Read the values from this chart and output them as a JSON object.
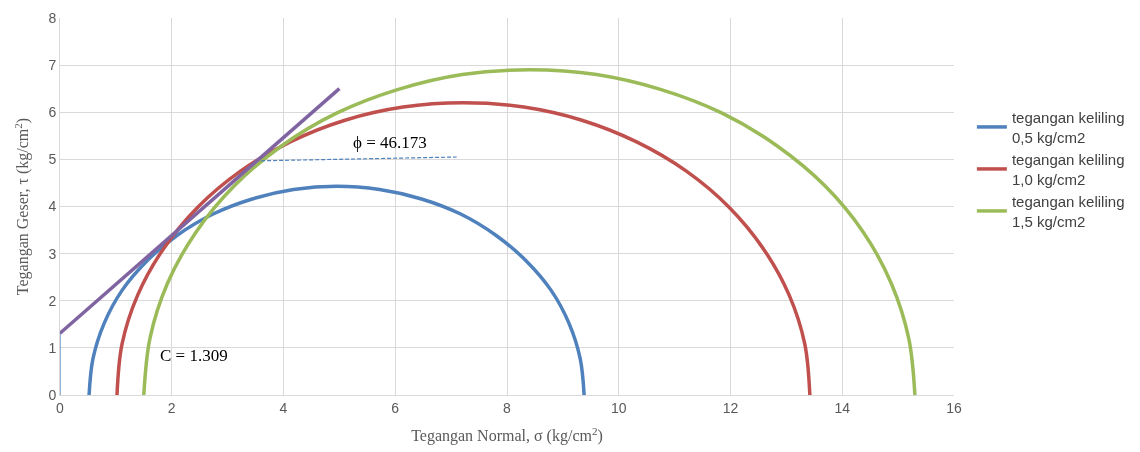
{
  "chart_data": {
    "type": "line",
    "xlabel": "Tegangan Normal, σ (kg/cm$^{2}$)",
    "ylabel": "Tegangan Geser, τ (kg/cm$^{2}$)",
    "xlim": [
      0,
      16
    ],
    "xticks": [
      0,
      2,
      4,
      6,
      8,
      10,
      12,
      14,
      16
    ],
    "ylim": [
      0,
      8
    ],
    "yticks": [
      0,
      1,
      2,
      3,
      4,
      5,
      6,
      7,
      8
    ],
    "grid": true,
    "legend": "right",
    "marker": "none",
    "line_style": "solid",
    "series": [
      {
        "name": "tegangan keliling 0,5 kg/cm2",
        "color": "#4f81bd",
        "x": [
          0.52,
          0.59,
          0.79,
          1.11,
          1.56,
          2.1,
          2.74,
          3.44,
          4.18,
          4.95,
          5.72,
          6.47,
          7.17,
          7.8,
          8.34,
          8.79,
          9.11,
          9.31,
          9.38
        ],
        "values": [
          0,
          0.77,
          1.52,
          2.22,
          2.85,
          3.39,
          3.84,
          4.16,
          4.36,
          4.43,
          4.36,
          4.16,
          3.84,
          3.39,
          2.85,
          2.22,
          1.52,
          0.77,
          0
        ]
      },
      {
        "name": "tegangan keliling 1,0 kg/cm2",
        "color": "#c0504d",
        "x": [
          1.02,
          1.11,
          1.39,
          1.85,
          2.47,
          3.23,
          4.12,
          5.1,
          6.14,
          7.22,
          8.3,
          9.34,
          10.32,
          11.21,
          11.97,
          12.59,
          13.05,
          13.33,
          13.42
        ],
        "values": [
          0,
          1.08,
          2.12,
          3.1,
          3.99,
          4.75,
          5.37,
          5.83,
          6.11,
          6.2,
          6.11,
          5.83,
          5.37,
          4.75,
          3.99,
          3.1,
          2.12,
          1.08,
          0
        ]
      },
      {
        "name": "tegangan keliling 1,5 kg/cm2",
        "color": "#9bbb59",
        "x": [
          1.5,
          1.61,
          1.92,
          2.43,
          3.12,
          3.97,
          4.95,
          6.04,
          7.2,
          8.4,
          9.6,
          10.76,
          11.85,
          12.83,
          13.69,
          14.38,
          14.88,
          15.19,
          15.3
        ],
        "values": [
          0,
          1.2,
          2.36,
          3.45,
          4.44,
          5.29,
          5.98,
          6.48,
          6.8,
          6.9,
          6.8,
          6.48,
          5.98,
          5.29,
          4.44,
          3.45,
          2.36,
          1.2,
          0
        ]
      },
      {
        "color": "#8064a2",
        "x": [
          0,
          5
        ],
        "values": [
          1.31,
          6.5
        ]
      },
      {
        "color": "#4f81bd",
        "x": [
          3.6,
          7.1
        ],
        "values": [
          4.97,
          5.05
        ],
        "line_style": "dashed"
      }
    ],
    "annotations": [
      "ϕ = 46.173",
      "C = 1.309"
    ]
  }
}
